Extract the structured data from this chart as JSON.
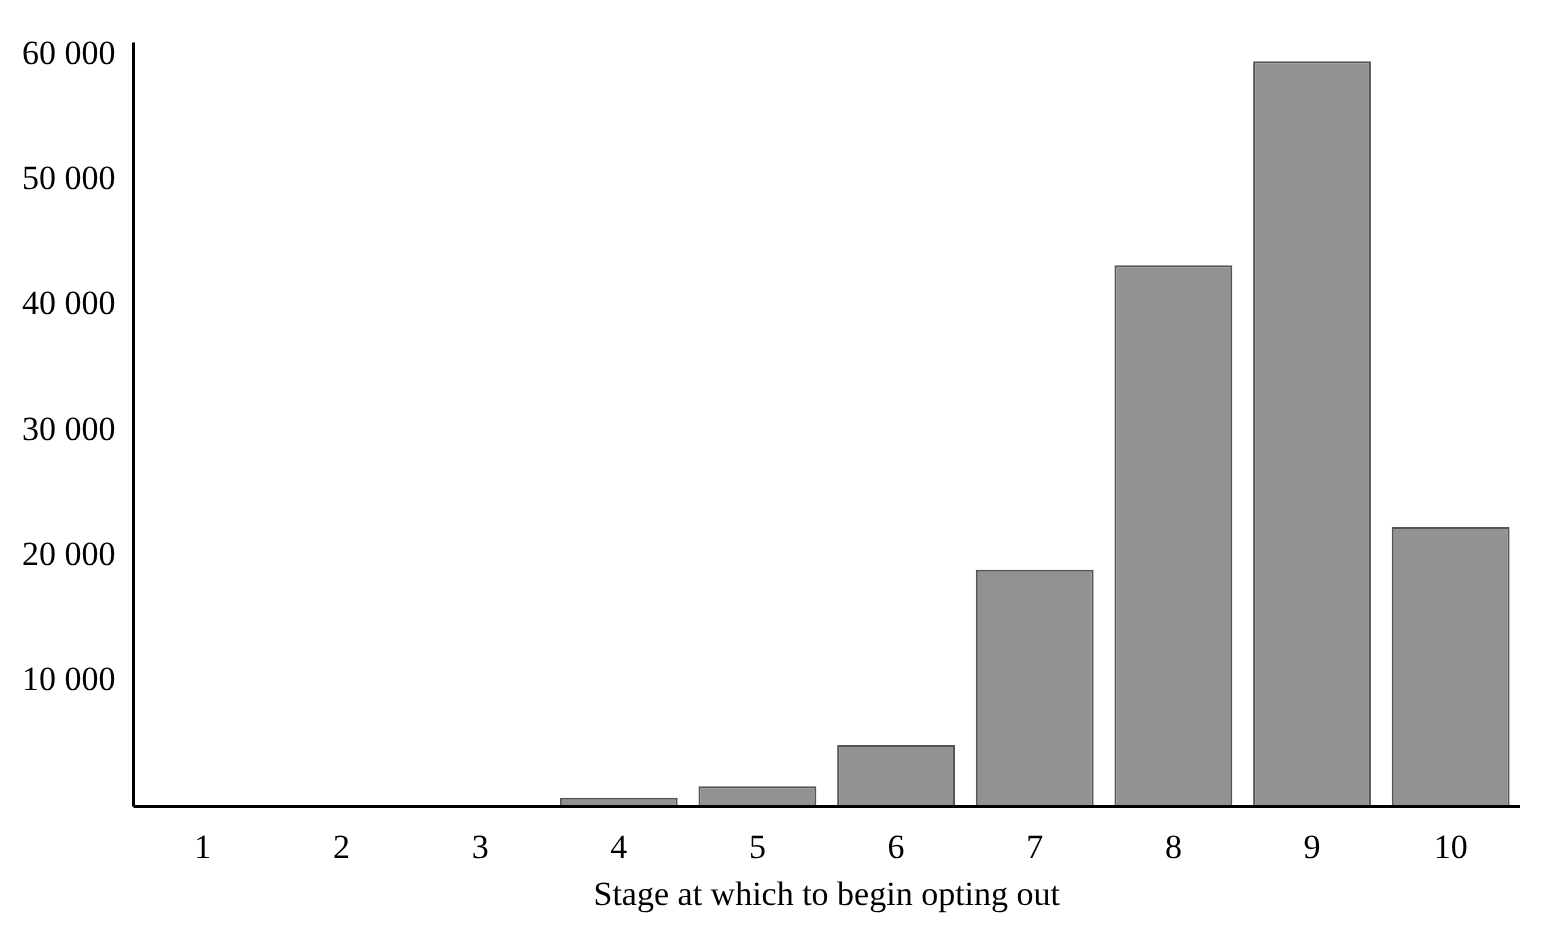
{
  "chart_data": {
    "type": "bar",
    "xlabel": "Stage at which to begin opting out",
    "categories": [
      "1",
      "2",
      "3",
      "4",
      "5",
      "6",
      "7",
      "8",
      "9",
      "10"
    ],
    "values": [
      0,
      0,
      0,
      700,
      1600,
      4900,
      18900,
      43200,
      59500,
      22300
    ],
    "color": "#929292",
    "ylim": [
      0,
      61000
    ],
    "yticks": [
      {
        "value": 10000,
        "label": "10 000"
      },
      {
        "value": 20000,
        "label": "20 000"
      },
      {
        "value": 30000,
        "label": "30 000"
      },
      {
        "value": 40000,
        "label": "40 000"
      },
      {
        "value": 50000,
        "label": "50 000"
      },
      {
        "value": 60000,
        "label": "60 000"
      }
    ],
    "grid": false,
    "legend": false
  }
}
